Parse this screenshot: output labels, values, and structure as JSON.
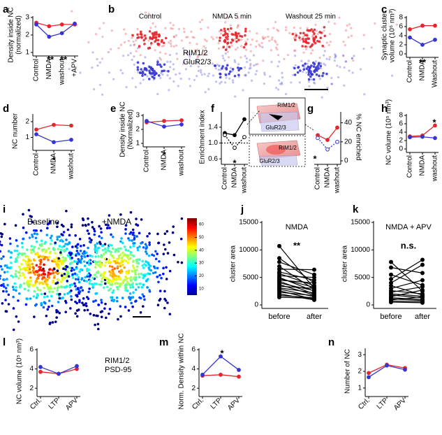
{
  "chart_data": [
    {
      "type": "line",
      "label": "a",
      "ylabel": [
        "Density inside NC",
        "(normalized)"
      ],
      "categories": [
        "Control",
        "NMDA",
        "washout",
        "+APV"
      ],
      "ylim": [
        1,
        3
      ],
      "yticks": [
        1,
        2,
        3
      ],
      "series": [
        {
          "color": "#e3262c",
          "values": [
            2.7,
            2.5,
            2.6,
            2.6
          ]
        },
        {
          "color": "#3535d0",
          "values": [
            2.6,
            1.9,
            2.1,
            2.65
          ]
        }
      ],
      "annotations": [
        "**",
        "**"
      ]
    },
    {
      "type": "image",
      "label": "b",
      "panels": [
        "Control",
        "NMDA 5 min",
        "Washout 25 min"
      ],
      "series": [
        {
          "name": "RIM1/2",
          "color": "#e3262c"
        },
        {
          "name": "GluR2/3",
          "color": "#3535d0"
        }
      ]
    },
    {
      "type": "line",
      "label": "c",
      "ylabel": [
        "Synaptic cluster",
        "volume (10⁶ nm³)"
      ],
      "categories": [
        "Control",
        "NMDA",
        "Washout"
      ],
      "ylim": [
        0,
        8
      ],
      "yticks": [
        0,
        2,
        4,
        6,
        8
      ],
      "series": [
        {
          "color": "#e3262c",
          "values": [
            5.4,
            6.2,
            6.2
          ]
        },
        {
          "color": "#3535d0",
          "values": [
            3.6,
            2.0,
            3.1
          ]
        }
      ],
      "annotations": [
        "**"
      ]
    },
    {
      "type": "line",
      "label": "d",
      "ylabel": [
        "NC number"
      ],
      "categories": [
        "Control",
        "NMDA",
        "washout"
      ],
      "ylim": [
        0.4,
        2.4
      ],
      "yticks": [
        1,
        2
      ],
      "series": [
        {
          "color": "#e3262c",
          "values": [
            1.5,
            1.8,
            1.75
          ]
        },
        {
          "color": "#3535d0",
          "values": [
            1.2,
            0.7,
            0.85
          ]
        }
      ],
      "annotations": [
        "*"
      ]
    },
    {
      "type": "line",
      "label": "e",
      "ylabel": [
        "Density inside NC",
        "(Normalized)"
      ],
      "categories": [
        "Control",
        "NMDA",
        "washout"
      ],
      "ylim": [
        1,
        3
      ],
      "yticks": [
        1,
        2,
        3
      ],
      "series": [
        {
          "color": "#e3262c",
          "values": [
            2.5,
            2.6,
            2.65
          ]
        },
        {
          "color": "#3535d0",
          "values": [
            2.6,
            2.2,
            2.35
          ]
        }
      ],
      "annotations": [
        "*"
      ]
    },
    {
      "type": "line",
      "label": "f",
      "ylabel": [
        "Enrichment index"
      ],
      "categories": [
        "Control",
        "NMDA",
        "washout"
      ],
      "ylim": [
        0.55,
        1.75
      ],
      "yticks": [
        0.6,
        {
          "value": 1.0,
          "label": "1.0"
        },
        1.4
      ],
      "hline": 1.0,
      "series": [
        {
          "color": "#000000",
          "values": [
            1.25,
            1.2,
            1.6
          ]
        },
        {
          "color": "#000000",
          "values": [
            1.2,
            0.88,
            1.15
          ],
          "dashed": true,
          "open": true
        }
      ],
      "annotations": [
        "*"
      ],
      "inset_labels": [
        "RIM1/2",
        "GluR2/3"
      ]
    },
    {
      "type": "line",
      "label": "g",
      "y2label": [
        "% NC enriched"
      ],
      "categories": [
        "Control",
        "NMDA",
        "washout"
      ],
      "y2lim": [
        0,
        50
      ],
      "y2ticks": [
        0,
        20,
        40
      ],
      "series": [
        {
          "color": "#e3262c",
          "values": [
            27,
            22,
            35
          ],
          "axis": "y2"
        },
        {
          "color": "#3535d0",
          "values": [
            24,
            12,
            20
          ],
          "axis": "y2",
          "dashed": true,
          "open": true
        }
      ],
      "annotations": [
        "*"
      ]
    },
    {
      "type": "line",
      "label": "h",
      "ylabel": [
        "NC volume (10⁵ nm³)"
      ],
      "categories": [
        "Control",
        "NMDA",
        "washout"
      ],
      "ylim": [
        0,
        8
      ],
      "yticks": [
        0,
        2,
        4,
        6,
        8
      ],
      "series": [
        {
          "color": "#e3262c",
          "values": [
            3.0,
            3.2,
            5.6
          ]
        },
        {
          "color": "#3535d0",
          "values": [
            2.8,
            2.9,
            2.6
          ]
        }
      ],
      "annotations": [
        "*"
      ]
    },
    {
      "type": "heatmap",
      "label": "i",
      "panels": [
        "Baseline",
        "+NMDA"
      ],
      "clim": [
        5,
        65
      ],
      "ticks": [
        10,
        20,
        30,
        40,
        50,
        60
      ]
    },
    {
      "type": "paired",
      "label": "j",
      "title": "NMDA",
      "ylabel": [
        "cluster area"
      ],
      "categories": [
        "before",
        "after"
      ],
      "ylim": [
        0,
        15000
      ],
      "yticks": [
        0,
        5000,
        10000,
        15000
      ],
      "color": "#000000",
      "values": [
        [
          10700,
          3000
        ],
        [
          8500,
          4000
        ],
        [
          7800,
          5500
        ],
        [
          7000,
          2800
        ],
        [
          6500,
          6400
        ],
        [
          6000,
          4500
        ],
        [
          5700,
          3500
        ],
        [
          5300,
          5000
        ],
        [
          5000,
          2500
        ],
        [
          4800,
          3200
        ],
        [
          4500,
          4000
        ],
        [
          4300,
          2000
        ],
        [
          4000,
          2600
        ],
        [
          3700,
          1800
        ],
        [
          3400,
          3000
        ],
        [
          3100,
          2200
        ],
        [
          2900,
          1500
        ],
        [
          2600,
          1000
        ],
        [
          2300,
          1700
        ],
        [
          2000,
          900
        ],
        [
          1700,
          1300
        ],
        [
          1400,
          1200
        ]
      ],
      "annotations": [
        "**"
      ]
    },
    {
      "type": "paired",
      "label": "k",
      "title": "NMDA + APV",
      "ylabel": [
        "cluster area"
      ],
      "categories": [
        "before",
        "after"
      ],
      "ylim": [
        0,
        15000
      ],
      "yticks": [
        0,
        5000,
        10000,
        15000
      ],
      "color": "#000000",
      "values": [
        [
          7800,
          2500
        ],
        [
          6800,
          5800
        ],
        [
          5500,
          3600
        ],
        [
          4700,
          8200
        ],
        [
          4000,
          7300
        ],
        [
          3500,
          1800
        ],
        [
          3000,
          4500
        ],
        [
          2600,
          2000
        ],
        [
          2300,
          3300
        ],
        [
          2000,
          1600
        ],
        [
          1800,
          1300
        ],
        [
          1500,
          2700
        ],
        [
          1300,
          1000
        ],
        [
          1100,
          800
        ],
        [
          900,
          1500
        ],
        [
          700,
          600
        ],
        [
          500,
          400
        ]
      ],
      "annotations": [
        "n.s."
      ]
    },
    {
      "type": "line",
      "label": "l",
      "ylabel": [
        "NC volume (10⁵ nm³)"
      ],
      "categories": [
        "Ctrl.",
        "LTP",
        "APV"
      ],
      "ylim": [
        1.5,
        6
      ],
      "yticks": [
        2,
        4,
        6
      ],
      "series": [
        {
          "name": "RIM1/2",
          "color": "#e3262c",
          "values": [
            3.7,
            3.5,
            4.0
          ]
        },
        {
          "name": "PSD-95",
          "color": "#3535d0",
          "values": [
            4.2,
            3.5,
            4.3
          ]
        }
      ]
    },
    {
      "type": "line",
      "label": "m",
      "ylabel": [
        "Norm. Density within NC"
      ],
      "categories": [
        "Ctrl.",
        "LTP",
        "APV"
      ],
      "ylim": [
        1.5,
        6
      ],
      "yticks": [
        2,
        4,
        6
      ],
      "series": [
        {
          "color": "#e3262c",
          "values": [
            3.3,
            3.4,
            3.2
          ]
        },
        {
          "color": "#3535d0",
          "values": [
            3.4,
            5.3,
            3.9
          ]
        }
      ],
      "annotations": [
        "*"
      ]
    },
    {
      "type": "line",
      "label": "n",
      "ylabel": [
        "Number of NC"
      ],
      "categories": [
        "Ctrl.",
        "LTP",
        "APV"
      ],
      "ylim": [
        0.7,
        3.3
      ],
      "yticks": [
        1,
        2,
        3
      ],
      "series": [
        {
          "color": "#e3262c",
          "values": [
            1.9,
            2.4,
            2.2
          ]
        },
        {
          "color": "#3535d0",
          "values": [
            1.65,
            2.35,
            2.1
          ]
        }
      ]
    }
  ]
}
